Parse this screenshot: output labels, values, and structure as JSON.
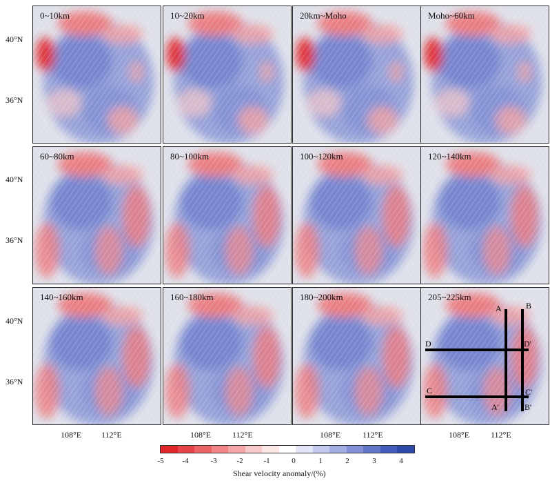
{
  "panels": [
    {
      "label": "0~10km"
    },
    {
      "label": "10~20km"
    },
    {
      "label": "20km~Moho"
    },
    {
      "label": "Moho~60km"
    },
    {
      "label": "60~80km"
    },
    {
      "label": "80~100km"
    },
    {
      "label": "100~120km"
    },
    {
      "label": "120~140km"
    },
    {
      "label": "140~160km"
    },
    {
      "label": "160~180km"
    },
    {
      "label": "180~200km"
    },
    {
      "label": "205~225km"
    }
  ],
  "lat_labels": [
    "40°N",
    "36°N"
  ],
  "lon_labels": [
    "108°E",
    "112°E"
  ],
  "colorbar": {
    "title": "Shear velocity anomaly/(%)",
    "ticks": [
      "-5",
      "-4",
      "-3",
      "-2",
      "-1",
      "0",
      "1",
      "2",
      "3",
      "4"
    ],
    "colors": [
      "#e0262a",
      "#e74449",
      "#ec6466",
      "#f28587",
      "#f5a6a8",
      "#f8c9ca",
      "#fce6e6",
      "#ffffff",
      "#e3e6f6",
      "#c3c9ec",
      "#a3ade1",
      "#8391d6",
      "#6377c9",
      "#435dbc",
      "#2e4aa8"
    ]
  },
  "profiles": [
    {
      "label": "A"
    },
    {
      "label": "A'"
    },
    {
      "label": "B"
    },
    {
      "label": "B'"
    },
    {
      "label": "C"
    },
    {
      "label": "C'"
    },
    {
      "label": "D"
    },
    {
      "label": "D'"
    }
  ]
}
